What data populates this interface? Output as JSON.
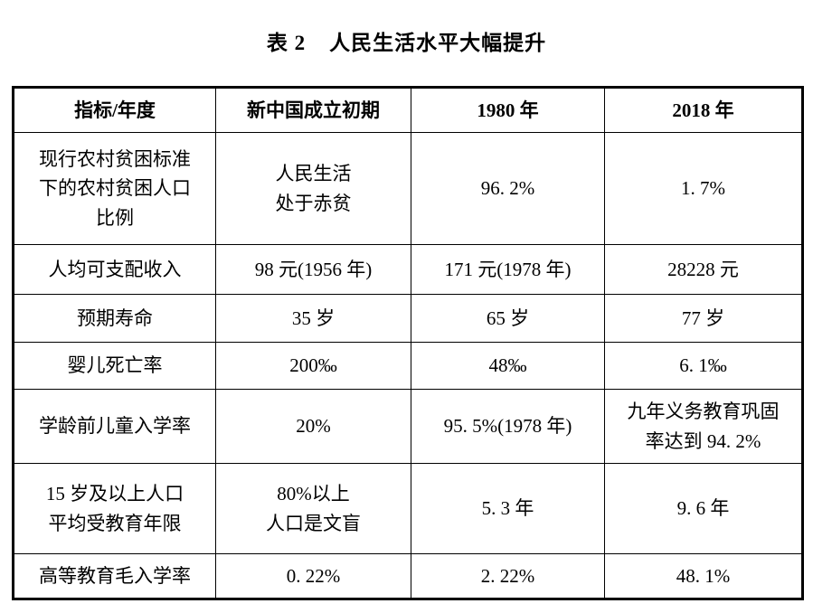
{
  "title": {
    "label": "表 2",
    "text": "人民生活水平大幅提升"
  },
  "table": {
    "headers": [
      "指标/年度",
      "新中国成立初期",
      "1980 年",
      "2018 年"
    ],
    "rows": [
      [
        "现行农村贫困标准\n下的农村贫困人口\n比例",
        "人民生活\n处于赤贫",
        "96. 2%",
        "1. 7%"
      ],
      [
        "人均可支配收入",
        "98 元(1956 年)",
        "171 元(1978 年)",
        "28228 元"
      ],
      [
        "预期寿命",
        "35 岁",
        "65 岁",
        "77 岁"
      ],
      [
        "婴儿死亡率",
        "200‰",
        "48‰",
        "6. 1‰"
      ],
      [
        "学龄前儿童入学率",
        "20%",
        "95. 5%(1978 年)",
        "九年义务教育巩固\n率达到 94. 2%"
      ],
      [
        "15 岁及以上人口\n平均受教育年限",
        "80%以上\n人口是文盲",
        "5. 3 年",
        "9. 6 年"
      ],
      [
        "高等教育毛入学率",
        "0. 22%",
        "2. 22%",
        "48. 1%"
      ]
    ]
  }
}
